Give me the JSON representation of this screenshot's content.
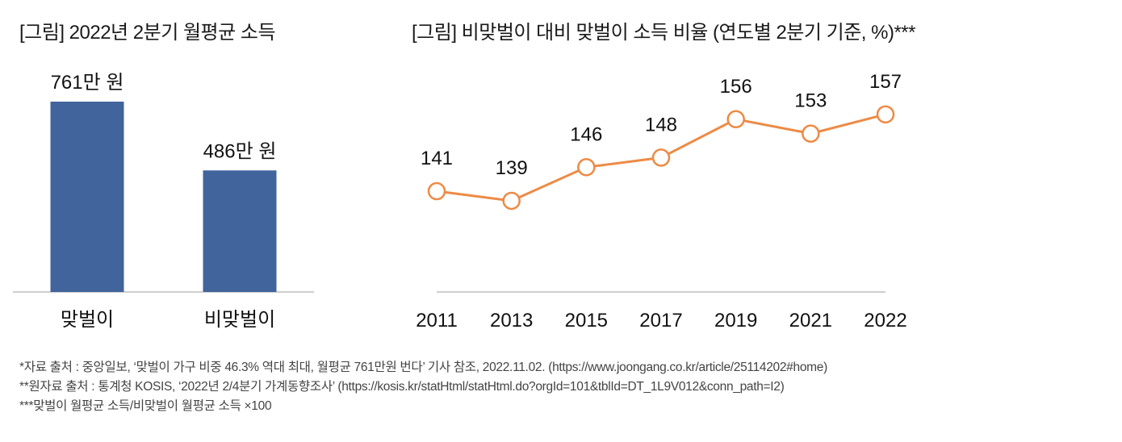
{
  "chart_data": [
    {
      "type": "bar",
      "title": "[그림] 2022년 2분기 월평균 소득",
      "categories": [
        "맞벌이",
        "비맞벌이"
      ],
      "values": [
        761,
        486
      ],
      "data_labels": [
        "761만 원",
        "486만 원"
      ],
      "unit": "만 원",
      "xlabel": "",
      "ylabel": "",
      "ylim": [
        0,
        761
      ],
      "grid": false,
      "legend": "none",
      "color": "#41649C"
    },
    {
      "type": "line",
      "title": "[그림] 비맞벌이 대비 맞벌이 소득 비율 (연도별 2분기 기준, %)***",
      "categories": [
        "2011",
        "2013",
        "2015",
        "2017",
        "2019",
        "2021",
        "2022"
      ],
      "values": [
        141,
        139,
        146,
        148,
        156,
        153,
        157
      ],
      "data_labels": [
        "141",
        "139",
        "146",
        "148",
        "156",
        "153",
        "157"
      ],
      "unit": "%",
      "xlabel": "",
      "ylabel": "",
      "ylim": [
        120,
        160
      ],
      "grid": false,
      "legend": "none",
      "color": "#ED8A45"
    }
  ],
  "footnotes": [
    "*자료 출처 : 중앙일보, ‘맞벌이 가구 비중 46.3% 역대 최대, 월평균 761만원 번다’ 기사 참조, 2022.11.02. (https://www.joongang.co.kr/article/25114202#home)",
    "**원자료 출처 : 통계청 KOSIS, ‘2022년 2/4분기 가계동향조사’ (https://kosis.kr/statHtml/statHtml.do?orgId=101&tblId=DT_1L9V012&conn_path=I2)",
    "***맞벌이 월평균 소득/비맞벌이 월평균 소득 ×100"
  ],
  "colors": {
    "bar": "#41649C",
    "line": "#ED8A45",
    "axis": "#BFBFBF"
  }
}
